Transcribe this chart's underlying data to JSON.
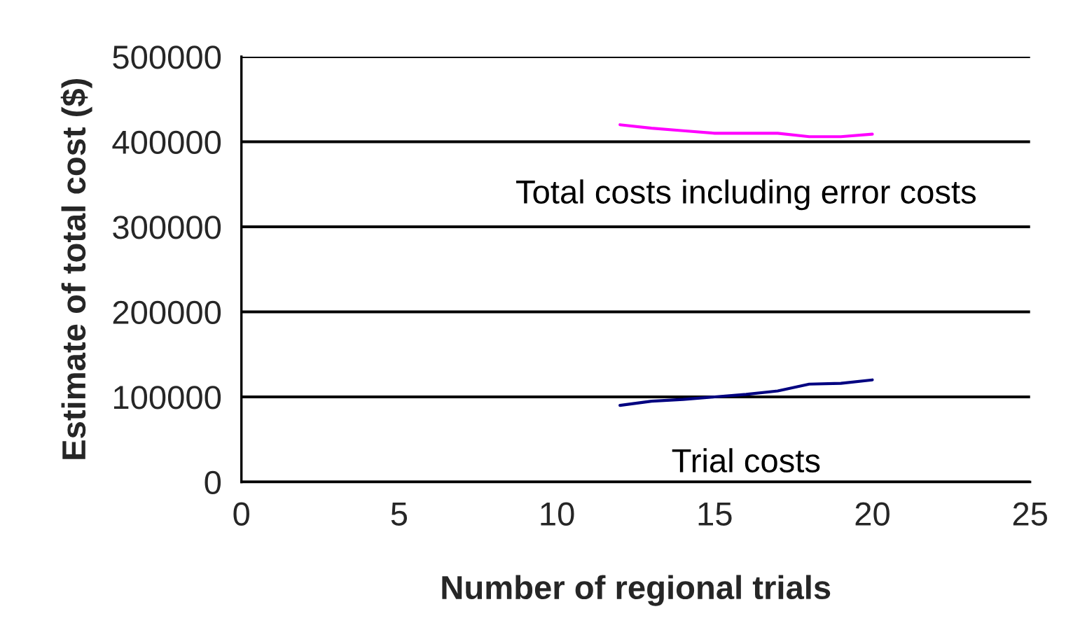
{
  "chart_data": {
    "type": "line",
    "xlabel": "Number of regional trials",
    "ylabel": "Estimate of total cost ($)",
    "xlim": [
      0,
      25
    ],
    "xticks": [
      0,
      5,
      10,
      15,
      20,
      25
    ],
    "ylim": [
      0,
      500000
    ],
    "yticks": [
      0,
      100000,
      200000,
      300000,
      400000,
      500000
    ],
    "grid": "y",
    "marker": "none",
    "line_style": "solid",
    "series": [
      {
        "name": "Total costs including error costs",
        "color": "#ff00ff",
        "x": [
          12,
          13,
          14,
          15,
          16,
          17,
          18,
          19,
          20
        ],
        "values": [
          420000,
          416000,
          413000,
          410000,
          410000,
          410000,
          406000,
          406000,
          409000
        ]
      },
      {
        "name": "Trial costs",
        "color": "#000080",
        "x": [
          12,
          13,
          14,
          15,
          16,
          17,
          18,
          19,
          20
        ],
        "values": [
          90000,
          95000,
          97000,
          100000,
          103000,
          107000,
          115000,
          116000,
          120000
        ]
      }
    ]
  }
}
